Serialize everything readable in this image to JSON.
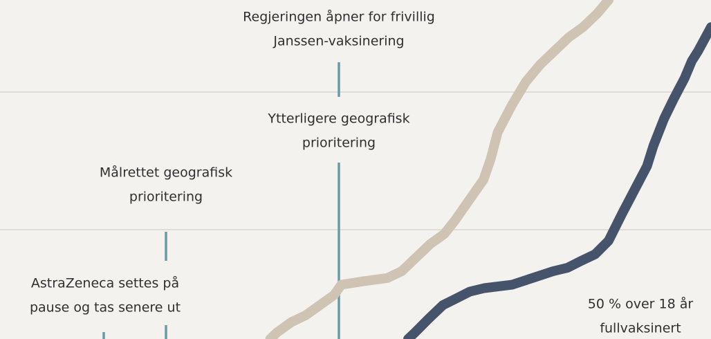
{
  "chart_data": {
    "type": "line",
    "xlim": [
      0,
      100
    ],
    "ylim": [
      0,
      100
    ],
    "series": [
      {
        "color": "#cfc3b4",
        "x": [
          38,
          39,
          41,
          43,
          45,
          47,
          48,
          51,
          54.5,
          56.5,
          58.5,
          60.5,
          62.5,
          64,
          66,
          68,
          69,
          70,
          72,
          74,
          76,
          78,
          80,
          82,
          84,
          85.6
        ],
        "values": [
          0,
          2,
          5,
          7,
          10,
          13,
          16,
          17,
          18,
          20,
          24,
          28,
          31,
          35,
          41,
          47,
          53,
          61,
          69,
          76,
          81,
          85,
          89,
          92,
          96,
          100
        ]
      },
      {
        "color": "#46546b",
        "x": [
          57.4,
          58.4,
          60.3,
          62.3,
          64.2,
          66.1,
          68.1,
          72,
          74.9,
          77.8,
          79.8,
          81.7,
          83.7,
          85.6,
          87.5,
          88.5,
          89.5,
          91,
          91.9,
          93.4,
          94.8,
          96.3,
          97.3,
          98.2,
          100
        ],
        "values": [
          0,
          2,
          6,
          10,
          12,
          14,
          15,
          16,
          18,
          20,
          21,
          23,
          25,
          29,
          37,
          41,
          45,
          51,
          57,
          65,
          71,
          77,
          82,
          85,
          92
        ]
      }
    ],
    "annotations": [
      {
        "lines": [
          "Regjeringen åpner for frivillig",
          "Janssen-vaksinering"
        ]
      },
      {
        "lines": [
          "Ytterligere geografisk",
          "prioritering"
        ]
      },
      {
        "lines": [
          "Målrettet geografisk",
          "prioritering"
        ]
      },
      {
        "lines": [
          "AstraZeneca settes på",
          "pause og tas senere ut"
        ]
      },
      {
        "lines": [
          "50 % over 18 år",
          "fullvaksinert"
        ]
      }
    ]
  }
}
